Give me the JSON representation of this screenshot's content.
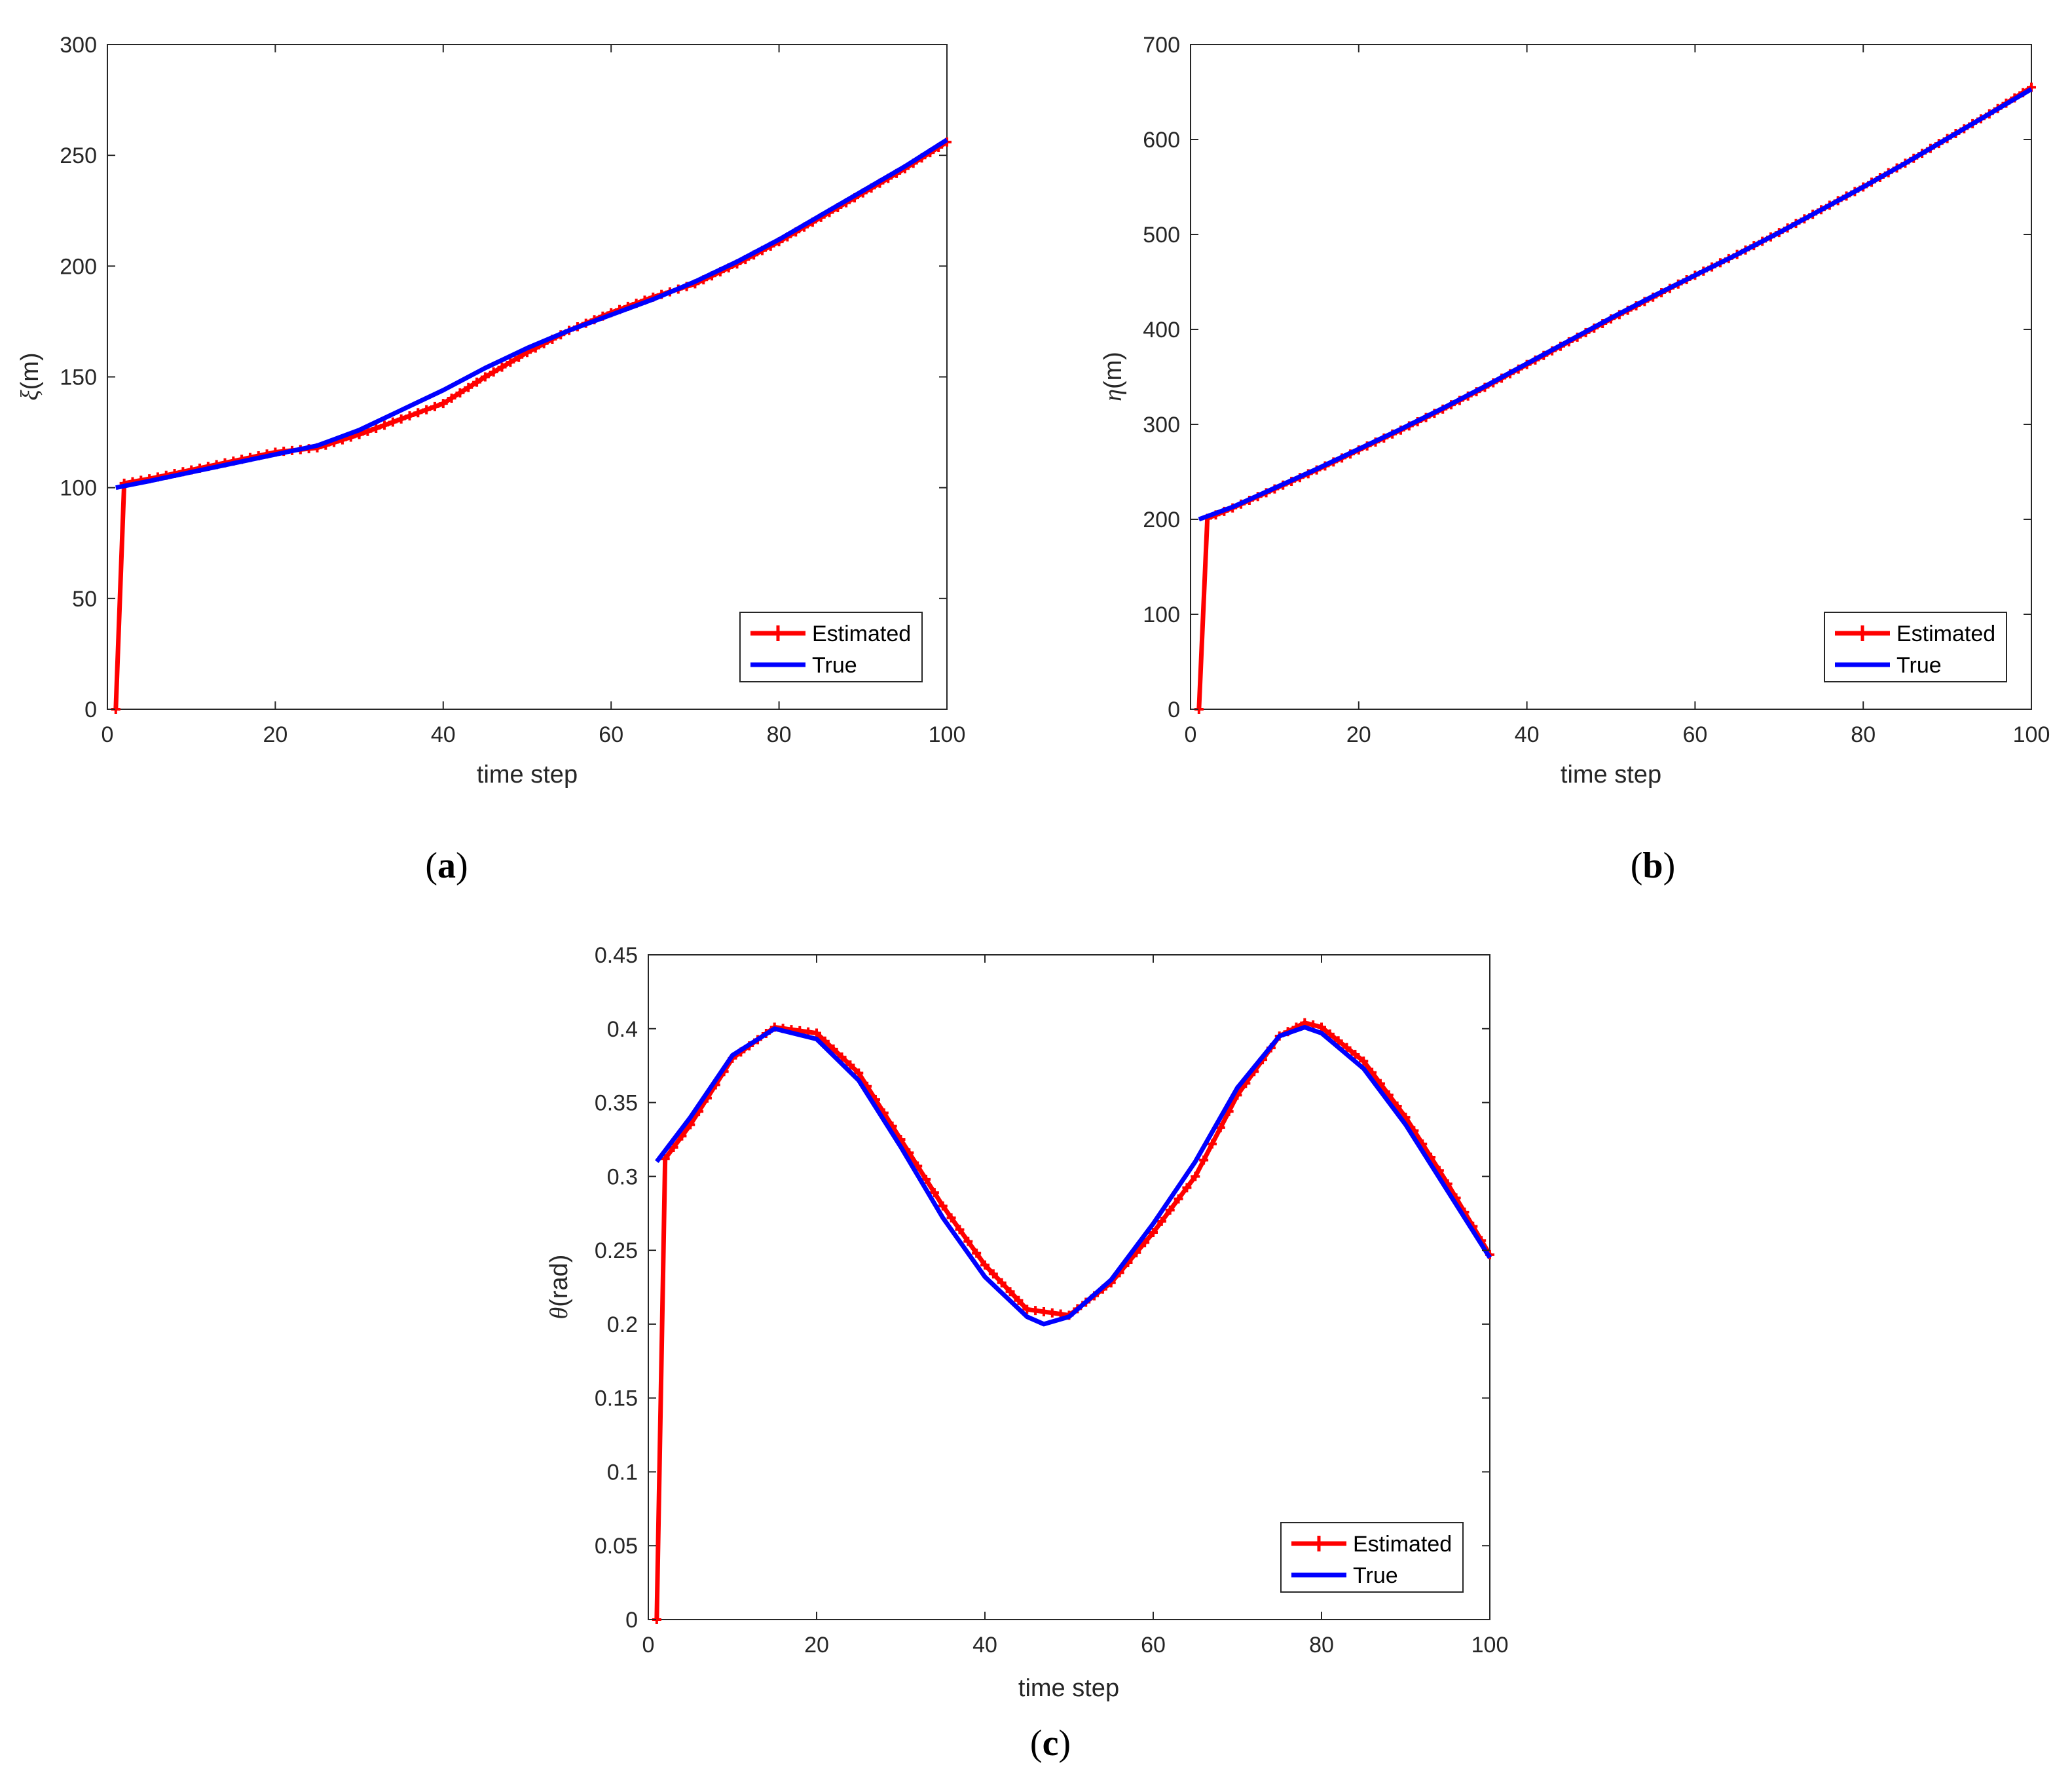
{
  "figure": {
    "panel_labels": [
      {
        "open": "(",
        "letter": "a",
        "close": ")"
      },
      {
        "open": "(",
        "letter": "b",
        "close": ")"
      },
      {
        "open": "(",
        "letter": "c",
        "close": ")"
      }
    ]
  },
  "colors": {
    "estimated": "#ff0000",
    "true": "#0000ff",
    "axis": "#262626"
  },
  "chart_data": [
    {
      "id": "a",
      "type": "line",
      "xlabel": "time step",
      "ylabel_symbol": "ξ",
      "ylabel_unit": "(m)",
      "xlim": [
        0,
        100
      ],
      "ylim": [
        0,
        300
      ],
      "xticks": [
        0,
        20,
        40,
        60,
        80,
        100
      ],
      "yticks": [
        0,
        50,
        100,
        150,
        200,
        250,
        300
      ],
      "legend": {
        "position": "bottom-right",
        "entries": [
          "Estimated",
          "True"
        ]
      },
      "series": [
        {
          "name": "Estimated",
          "marker": "plus",
          "x": [
            1,
            2,
            5,
            10,
            15,
            20,
            25,
            30,
            35,
            40,
            45,
            50,
            55,
            60,
            65,
            70,
            75,
            80,
            85,
            90,
            95,
            100
          ],
          "y": [
            0,
            102,
            104,
            108,
            112,
            116,
            118,
            124,
            131,
            138,
            150,
            161,
            171,
            179,
            186,
            192,
            201,
            211,
            222,
            233,
            244,
            256
          ]
        },
        {
          "name": "True",
          "marker": "none",
          "x": [
            1,
            5,
            10,
            15,
            20,
            25,
            30,
            35,
            40,
            45,
            50,
            55,
            60,
            65,
            70,
            75,
            80,
            85,
            90,
            95,
            100
          ],
          "y": [
            100,
            103,
            107,
            111,
            115,
            119,
            126,
            135,
            144,
            154,
            163,
            171,
            178,
            185,
            193,
            202,
            212,
            223,
            234,
            245,
            257
          ]
        }
      ]
    },
    {
      "id": "b",
      "type": "line",
      "xlabel": "time step",
      "ylabel_symbol": "η",
      "ylabel_unit": "(m)",
      "xlim": [
        0,
        100
      ],
      "ylim": [
        0,
        700
      ],
      "xticks": [
        0,
        20,
        40,
        60,
        80,
        100
      ],
      "yticks": [
        0,
        100,
        200,
        300,
        400,
        500,
        600,
        700
      ],
      "legend": {
        "position": "bottom-right",
        "entries": [
          "Estimated",
          "True"
        ]
      },
      "series": [
        {
          "name": "Estimated",
          "marker": "plus",
          "x": [
            1,
            2,
            5,
            10,
            15,
            20,
            25,
            30,
            35,
            40,
            45,
            50,
            55,
            60,
            65,
            70,
            75,
            80,
            85,
            90,
            95,
            100
          ],
          "y": [
            0,
            201,
            212,
            232,
            252,
            273,
            294,
            316,
            339,
            363,
            387,
            411,
            434,
            457,
            479,
            502,
            526,
            550,
            575,
            601,
            627,
            655
          ]
        },
        {
          "name": "True",
          "marker": "none",
          "x": [
            1,
            5,
            10,
            15,
            20,
            25,
            30,
            35,
            40,
            45,
            50,
            55,
            60,
            65,
            70,
            75,
            80,
            85,
            90,
            95,
            100
          ],
          "y": [
            200,
            213,
            233,
            253,
            274,
            295,
            317,
            340,
            364,
            388,
            412,
            435,
            457,
            479,
            502,
            526,
            550,
            575,
            601,
            627,
            653
          ]
        }
      ]
    },
    {
      "id": "c",
      "type": "line",
      "xlabel": "time step",
      "ylabel_symbol": "θ",
      "ylabel_unit": "(rad)",
      "xlim": [
        0,
        100
      ],
      "ylim": [
        0,
        0.45
      ],
      "xticks": [
        0,
        20,
        40,
        60,
        80,
        100
      ],
      "xtick_labels": [
        "0",
        "20",
        "40",
        "60",
        "80",
        "100"
      ],
      "yticks": [
        0,
        0.05,
        0.1,
        0.15,
        0.2,
        0.25,
        0.3,
        0.35,
        0.4,
        0.45
      ],
      "ytick_labels": [
        "0",
        "0.05",
        "0.1",
        "0.15",
        "0.2",
        "0.25",
        "0.3",
        "0.35",
        "0.4",
        "0.45"
      ],
      "legend": {
        "position": "bottom-right",
        "entries": [
          "Estimated",
          "True"
        ]
      },
      "series": [
        {
          "name": "Estimated",
          "marker": "plus",
          "x": [
            1,
            2,
            5,
            10,
            15,
            20,
            25,
            30,
            35,
            40,
            45,
            50,
            55,
            60,
            65,
            70,
            75,
            78,
            80,
            85,
            90,
            95,
            100
          ],
          "y": [
            0,
            0.312,
            0.335,
            0.38,
            0.401,
            0.397,
            0.37,
            0.325,
            0.28,
            0.24,
            0.21,
            0.206,
            0.228,
            0.262,
            0.3,
            0.355,
            0.395,
            0.404,
            0.401,
            0.378,
            0.34,
            0.295,
            0.247
          ]
        },
        {
          "name": "True",
          "marker": "none",
          "x": [
            1,
            5,
            10,
            15,
            20,
            25,
            30,
            35,
            40,
            45,
            47,
            50,
            55,
            60,
            65,
            70,
            75,
            78,
            80,
            85,
            90,
            95,
            100
          ],
          "y": [
            0.31,
            0.34,
            0.382,
            0.4,
            0.393,
            0.365,
            0.32,
            0.272,
            0.232,
            0.205,
            0.2,
            0.205,
            0.23,
            0.268,
            0.31,
            0.36,
            0.395,
            0.401,
            0.397,
            0.373,
            0.335,
            0.29,
            0.245
          ]
        }
      ]
    }
  ]
}
